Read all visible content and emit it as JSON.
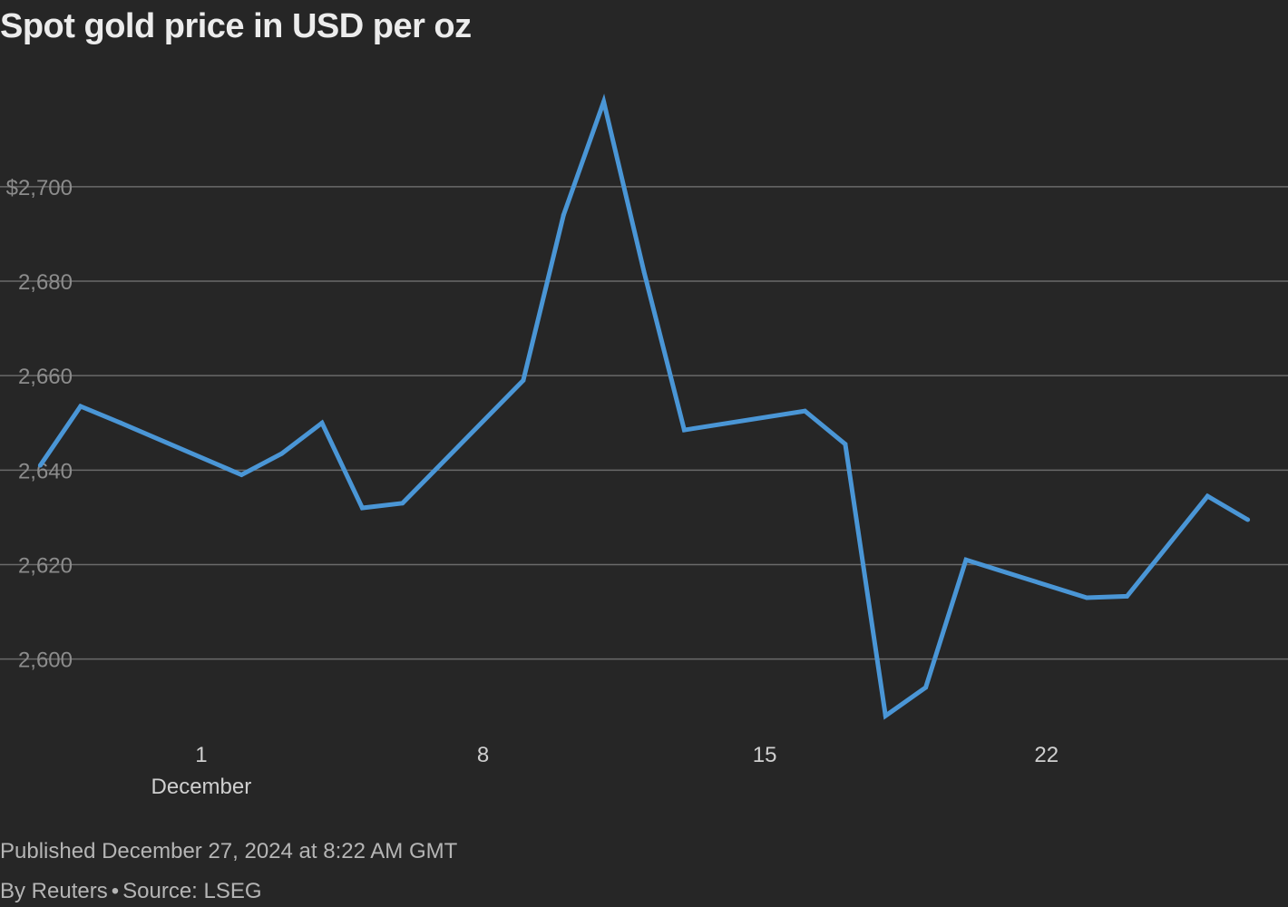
{
  "title": "Spot gold price in USD per oz",
  "footer": {
    "published": "Published December 27, 2024 at 8:22 AM GMT",
    "byline": "By Reuters",
    "separator": "•",
    "source": "Source: LSEG"
  },
  "colors": {
    "background": "#262626",
    "line": "#4a96d6",
    "grid": "#6a6a6a",
    "tick_text": "#8c8c8c",
    "axis_text": "#cfcfcf"
  },
  "chart_data": {
    "type": "line",
    "title": "Spot gold price in USD per oz",
    "xlabel": "",
    "ylabel": "",
    "y_ticks": [
      2600,
      2620,
      2640,
      2660,
      2680,
      2700
    ],
    "y_tick_labels": [
      "2,600",
      "2,620",
      "2,640",
      "2,660",
      "2,680",
      "$2,700"
    ],
    "ylim": [
      2584,
      2728
    ],
    "x_ticks": [
      {
        "date": "2024-12-01",
        "label": "1",
        "sublabel": "December"
      },
      {
        "date": "2024-12-08",
        "label": "8",
        "sublabel": ""
      },
      {
        "date": "2024-12-15",
        "label": "15",
        "sublabel": ""
      },
      {
        "date": "2024-12-22",
        "label": "22",
        "sublabel": ""
      }
    ],
    "xlim": [
      "2024-11-26",
      "2024-12-28"
    ],
    "grid": true,
    "series": [
      {
        "x": [
          "2024-11-27",
          "2024-11-28",
          "2024-11-29",
          "2024-12-02",
          "2024-12-03",
          "2024-12-04",
          "2024-12-05",
          "2024-12-06",
          "2024-12-09",
          "2024-12-10",
          "2024-12-11",
          "2024-12-12",
          "2024-12-13",
          "2024-12-16",
          "2024-12-17",
          "2024-12-18",
          "2024-12-19",
          "2024-12-20",
          "2024-12-23",
          "2024-12-24",
          "2024-12-26",
          "2024-12-27"
        ],
        "values": [
          2641,
          2653.5,
          2650,
          2639,
          2643.5,
          2650,
          2632,
          2633,
          2659,
          2694,
          2718,
          2682,
          2648.5,
          2652.5,
          2645.5,
          2588,
          2594,
          2621,
          2613,
          2613.3,
          2634.5,
          2629.5
        ]
      }
    ]
  }
}
